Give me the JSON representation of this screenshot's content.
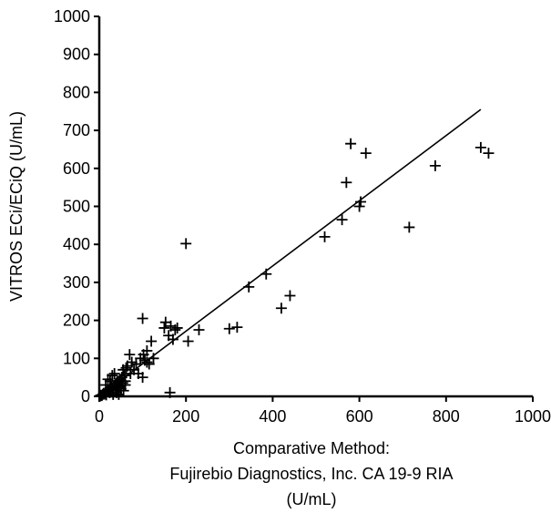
{
  "chart_data": {
    "type": "scatter",
    "title": "",
    "xlabel_lines": [
      "Comparative Method:",
      "Fujirebio Diagnostics, Inc. CA 19-9 RIA",
      "(U/mL)"
    ],
    "ylabel": "VITROS ECi/ECiQ (U/mL)",
    "xlim": [
      0,
      1000
    ],
    "ylim": [
      0,
      1000
    ],
    "x_ticks": [
      0,
      200,
      400,
      600,
      800,
      1000
    ],
    "y_ticks": [
      0,
      100,
      200,
      300,
      400,
      500,
      600,
      700,
      800,
      900,
      1000
    ],
    "x_tick_labels": [
      "0",
      "200",
      "400",
      "600",
      "800",
      "1000"
    ],
    "y_tick_labels": [
      "0",
      "100",
      "200",
      "300",
      "400",
      "500",
      "600",
      "700",
      "800",
      "900",
      "1000"
    ],
    "grid": false,
    "marker": "plus",
    "color": "#000000",
    "regression_line": {
      "x": [
        0,
        880
      ],
      "y": [
        0,
        755
      ]
    },
    "points": [
      [
        2,
        1
      ],
      [
        4,
        3
      ],
      [
        6,
        2
      ],
      [
        8,
        5
      ],
      [
        10,
        8
      ],
      [
        12,
        6
      ],
      [
        14,
        10
      ],
      [
        16,
        4
      ],
      [
        18,
        12
      ],
      [
        20,
        15
      ],
      [
        22,
        18
      ],
      [
        24,
        10
      ],
      [
        26,
        20
      ],
      [
        28,
        25
      ],
      [
        30,
        22
      ],
      [
        32,
        5
      ],
      [
        34,
        28
      ],
      [
        36,
        30
      ],
      [
        38,
        15
      ],
      [
        40,
        35
      ],
      [
        42,
        20
      ],
      [
        44,
        40
      ],
      [
        46,
        25
      ],
      [
        48,
        45
      ],
      [
        50,
        30
      ],
      [
        52,
        50
      ],
      [
        54,
        35
      ],
      [
        56,
        15
      ],
      [
        58,
        55
      ],
      [
        60,
        40
      ],
      [
        25,
        40
      ],
      [
        30,
        55
      ],
      [
        35,
        60
      ],
      [
        40,
        10
      ],
      [
        45,
        5
      ],
      [
        50,
        20
      ],
      [
        55,
        70
      ],
      [
        60,
        30
      ],
      [
        15,
        30
      ],
      [
        20,
        45
      ],
      [
        62,
        75
      ],
      [
        65,
        80
      ],
      [
        70,
        110
      ],
      [
        72,
        60
      ],
      [
        75,
        90
      ],
      [
        80,
        70
      ],
      [
        85,
        85
      ],
      [
        90,
        60
      ],
      [
        95,
        100
      ],
      [
        100,
        50
      ],
      [
        100,
        205
      ],
      [
        102,
        110
      ],
      [
        105,
        95
      ],
      [
        110,
        120
      ],
      [
        115,
        85
      ],
      [
        120,
        145
      ],
      [
        125,
        100
      ],
      [
        110,
        90
      ],
      [
        150,
        180
      ],
      [
        153,
        195
      ],
      [
        160,
        160
      ],
      [
        165,
        185
      ],
      [
        170,
        150
      ],
      [
        175,
        175
      ],
      [
        180,
        180
      ],
      [
        163,
        10
      ],
      [
        200,
        402
      ],
      [
        205,
        145
      ],
      [
        230,
        175
      ],
      [
        300,
        178
      ],
      [
        318,
        182
      ],
      [
        345,
        288
      ],
      [
        385,
        322
      ],
      [
        420,
        232
      ],
      [
        440,
        265
      ],
      [
        520,
        420
      ],
      [
        560,
        465
      ],
      [
        570,
        563
      ],
      [
        580,
        665
      ],
      [
        600,
        500
      ],
      [
        603,
        512
      ],
      [
        615,
        640
      ],
      [
        715,
        445
      ],
      [
        775,
        607
      ],
      [
        880,
        655
      ],
      [
        898,
        640
      ]
    ]
  }
}
